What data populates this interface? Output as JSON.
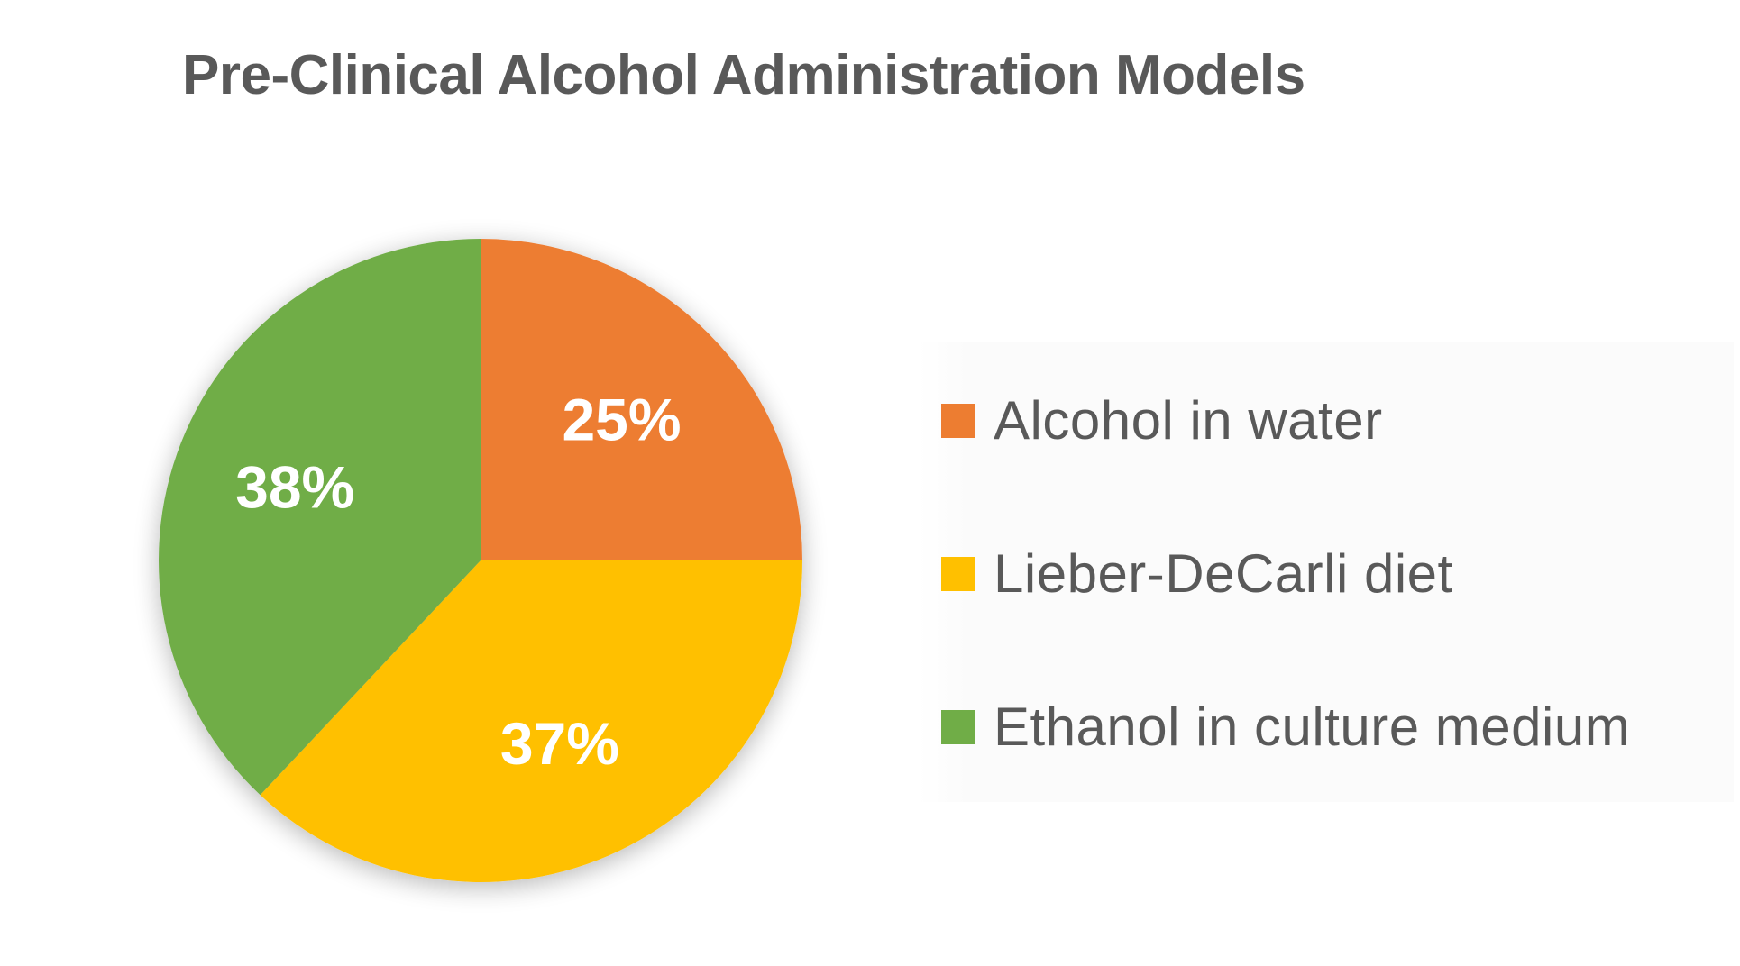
{
  "chart_data": {
    "type": "pie",
    "title": "Pre-Clinical Alcohol Administration Models",
    "categories": [
      "Alcohol in water",
      "Lieber-DeCarli diet",
      "Ethanol in culture medium"
    ],
    "values": [
      25,
      37,
      38
    ],
    "labels": [
      "25%",
      "37%",
      "38%"
    ],
    "colors": [
      "#ED7D31",
      "#FFC000",
      "#70AD47"
    ],
    "label_color": "#FFFFFF",
    "legend_position": "right"
  }
}
